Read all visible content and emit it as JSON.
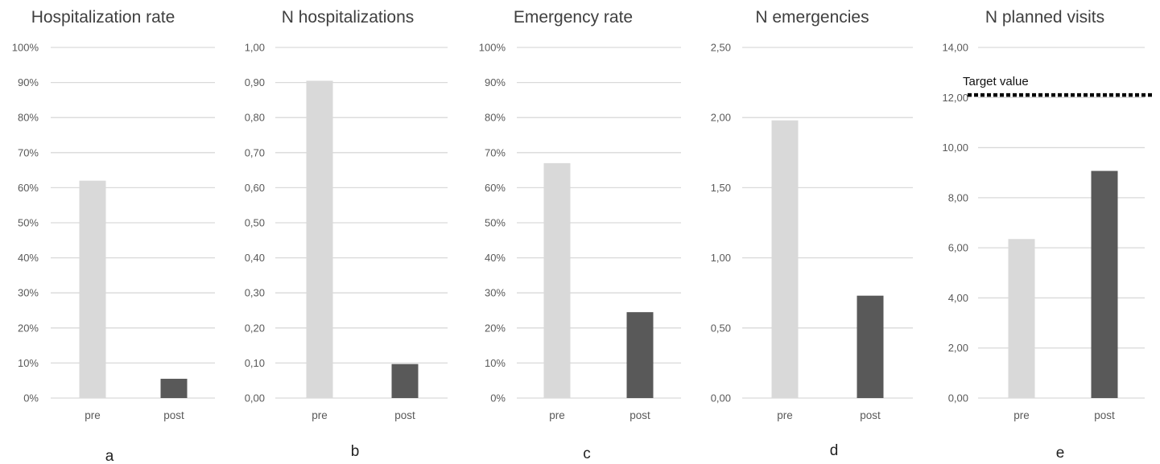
{
  "colors": {
    "pre": "#d9d9d9",
    "post": "#595959",
    "grid": "#d9d9d9",
    "target": "#000000"
  },
  "chart_data": [
    {
      "type": "bar",
      "panel": "a",
      "title": "Hospitalization rate",
      "categories": [
        "pre",
        "post"
      ],
      "values": [
        0.62,
        0.055
      ],
      "ylim": [
        0,
        1
      ],
      "yticks": [
        0,
        0.1,
        0.2,
        0.3,
        0.4,
        0.5,
        0.6,
        0.7,
        0.8,
        0.9,
        1.0
      ],
      "ytick_labels": [
        "0%",
        "10%",
        "20%",
        "30%",
        "40%",
        "50%",
        "60%",
        "70%",
        "80%",
        "90%",
        "100%"
      ],
      "grid": true
    },
    {
      "type": "bar",
      "panel": "b",
      "title": "N hospitalizations",
      "categories": [
        "pre",
        "post"
      ],
      "values": [
        0.905,
        0.097
      ],
      "ylim": [
        0,
        1
      ],
      "yticks": [
        0,
        0.1,
        0.2,
        0.3,
        0.4,
        0.5,
        0.6,
        0.7,
        0.8,
        0.9,
        1.0
      ],
      "ytick_labels": [
        "0,00",
        "0,10",
        "0,20",
        "0,30",
        "0,40",
        "0,50",
        "0,60",
        "0,70",
        "0,80",
        "0,90",
        "1,00"
      ],
      "grid": true
    },
    {
      "type": "bar",
      "panel": "c",
      "title": "Emergency rate",
      "categories": [
        "pre",
        "post"
      ],
      "values": [
        0.67,
        0.245
      ],
      "ylim": [
        0,
        1
      ],
      "yticks": [
        0,
        0.1,
        0.2,
        0.3,
        0.4,
        0.5,
        0.6,
        0.7,
        0.8,
        0.9,
        1.0
      ],
      "ytick_labels": [
        "0%",
        "10%",
        "20%",
        "30%",
        "40%",
        "50%",
        "60%",
        "70%",
        "80%",
        "90%",
        "100%"
      ],
      "grid": true
    },
    {
      "type": "bar",
      "panel": "d",
      "title": "N emergencies",
      "categories": [
        "pre",
        "post"
      ],
      "values": [
        1.98,
        0.73
      ],
      "ylim": [
        0,
        2.5
      ],
      "yticks": [
        0,
        0.5,
        1.0,
        1.5,
        2.0,
        2.5
      ],
      "ytick_labels": [
        "0,00",
        "0,50",
        "1,00",
        "1,50",
        "2,00",
        "2,50"
      ],
      "grid": true
    },
    {
      "type": "bar",
      "panel": "e",
      "title": "N planned visits",
      "categories": [
        "pre",
        "post"
      ],
      "values": [
        6.35,
        9.07
      ],
      "ylim": [
        0,
        14
      ],
      "yticks": [
        0,
        2,
        4,
        6,
        8,
        10,
        12,
        14
      ],
      "ytick_labels": [
        "0,00",
        "2,00",
        "4,00",
        "6,00",
        "8,00",
        "10,00",
        "12,00",
        "14,00"
      ],
      "grid": true,
      "reference_line": {
        "label": "Target value",
        "value": 12.1,
        "style": "dotted"
      }
    }
  ]
}
